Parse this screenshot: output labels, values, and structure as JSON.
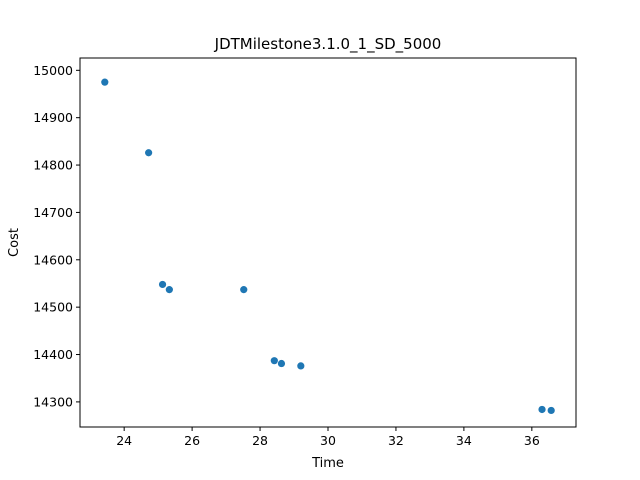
{
  "chart_data": {
    "type": "scatter",
    "title": "JDTMilestone3.1.0_1_SD_5000",
    "xlabel": "Time",
    "ylabel": "Cost",
    "xlim": [
      22.7,
      37.3
    ],
    "ylim": [
      14247,
      15026
    ],
    "xticks": [
      24,
      26,
      28,
      30,
      32,
      34,
      36
    ],
    "yticks": [
      14300,
      14400,
      14500,
      14600,
      14700,
      14800,
      14900,
      15000
    ],
    "grid": false,
    "point_color": "#1f77b4",
    "points": [
      {
        "x": 23.43,
        "y": 14975
      },
      {
        "x": 24.72,
        "y": 14826
      },
      {
        "x": 25.13,
        "y": 14548
      },
      {
        "x": 25.33,
        "y": 14537
      },
      {
        "x": 27.52,
        "y": 14537
      },
      {
        "x": 28.42,
        "y": 14387
      },
      {
        "x": 28.63,
        "y": 14381
      },
      {
        "x": 29.2,
        "y": 14376
      },
      {
        "x": 36.3,
        "y": 14284
      },
      {
        "x": 36.57,
        "y": 14282
      }
    ]
  }
}
